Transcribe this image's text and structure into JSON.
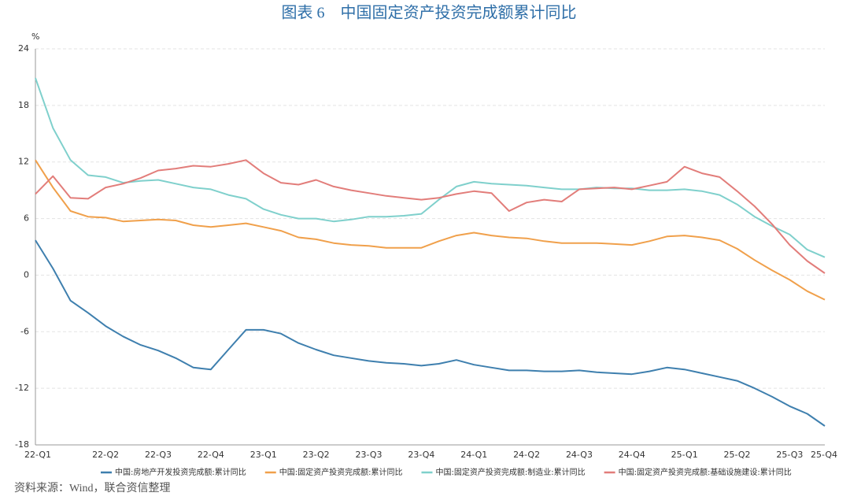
{
  "chart_data": {
    "type": "line",
    "title": "图表 6　中国固定资产投资完成额累计同比",
    "y_unit": "%",
    "source": "资料来源：Wind，联合资信整理",
    "categories": [
      "22-Q1",
      null,
      null,
      null,
      "22-Q2",
      null,
      null,
      "22-Q3",
      null,
      null,
      "22-Q4",
      null,
      null,
      "23-Q1",
      null,
      null,
      "23-Q2",
      null,
      null,
      "23-Q3",
      null,
      null,
      "23-Q4",
      null,
      null,
      "24-Q1",
      null,
      null,
      "24-Q2",
      null,
      null,
      "24-Q3",
      null,
      null,
      "24-Q4",
      null,
      null,
      "25-Q1",
      null,
      null,
      "25-Q2",
      null,
      null,
      "25-Q3",
      null,
      "25-Q4"
    ],
    "ylim": [
      -18,
      24
    ],
    "yticks": [
      -18,
      -12,
      -6,
      0,
      6,
      12,
      18,
      24
    ],
    "grid": true,
    "series": [
      {
        "name": "中国:房地产开发投资完成额:累计同比",
        "color": "#3e7fae",
        "values": [
          3.7,
          0.7,
          -2.7,
          -4.0,
          -5.4,
          -6.5,
          -7.4,
          -8.0,
          -8.8,
          -9.8,
          -10.0,
          -7.9,
          -5.8,
          -5.8,
          -6.2,
          -7.2,
          -7.9,
          -8.5,
          -8.8,
          -9.1,
          -9.3,
          -9.4,
          -9.6,
          -9.4,
          -9.0,
          -9.5,
          -9.8,
          -10.1,
          -10.1,
          -10.2,
          -10.2,
          -10.1,
          -10.3,
          -10.4,
          -10.5,
          -10.2,
          -9.8,
          -10.0,
          -10.4,
          -10.8,
          -11.2,
          -12.0,
          -12.9,
          -13.9,
          -14.7,
          -16.0
        ]
      },
      {
        "name": "中国:固定资产投资完成额:累计同比",
        "color": "#f0a04b",
        "values": [
          12.2,
          9.3,
          6.8,
          6.2,
          6.1,
          5.7,
          5.8,
          5.9,
          5.8,
          5.3,
          5.1,
          5.3,
          5.5,
          5.1,
          4.7,
          4.0,
          3.8,
          3.4,
          3.2,
          3.1,
          2.9,
          2.9,
          2.9,
          3.6,
          4.2,
          4.5,
          4.2,
          4.0,
          3.9,
          3.6,
          3.4,
          3.4,
          3.4,
          3.3,
          3.2,
          3.6,
          4.1,
          4.2,
          4.0,
          3.7,
          2.8,
          1.6,
          0.5,
          -0.5,
          -1.7,
          -2.6
        ]
      },
      {
        "name": "中国:固定资产投资完成额:制造业:累计同比",
        "color": "#7fd0cc",
        "values": [
          20.9,
          15.6,
          12.2,
          10.6,
          10.4,
          9.8,
          10.0,
          10.1,
          9.7,
          9.3,
          9.1,
          8.5,
          8.1,
          7.0,
          6.4,
          6.0,
          6.0,
          5.7,
          5.9,
          6.2,
          6.2,
          6.3,
          6.5,
          8.0,
          9.4,
          9.9,
          9.7,
          9.6,
          9.5,
          9.3,
          9.1,
          9.1,
          9.3,
          9.2,
          9.2,
          9.0,
          9.0,
          9.1,
          8.9,
          8.5,
          7.5,
          6.2,
          5.2,
          4.3,
          2.7,
          1.9
        ]
      },
      {
        "name": "中国:固定资产投资完成额:基础设施建设:累计同比",
        "color": "#e27d7a",
        "values": [
          8.6,
          10.5,
          8.2,
          8.1,
          9.3,
          9.7,
          10.3,
          11.1,
          11.3,
          11.6,
          11.5,
          11.8,
          12.2,
          10.8,
          9.8,
          9.6,
          10.1,
          9.4,
          9.0,
          8.7,
          8.4,
          8.2,
          8.0,
          8.2,
          8.6,
          8.9,
          8.7,
          6.8,
          7.7,
          8.0,
          7.8,
          9.1,
          9.2,
          9.3,
          9.1,
          9.5,
          9.9,
          11.5,
          10.8,
          10.4,
          8.9,
          7.3,
          5.4,
          3.2,
          1.5,
          0.2
        ]
      }
    ]
  }
}
